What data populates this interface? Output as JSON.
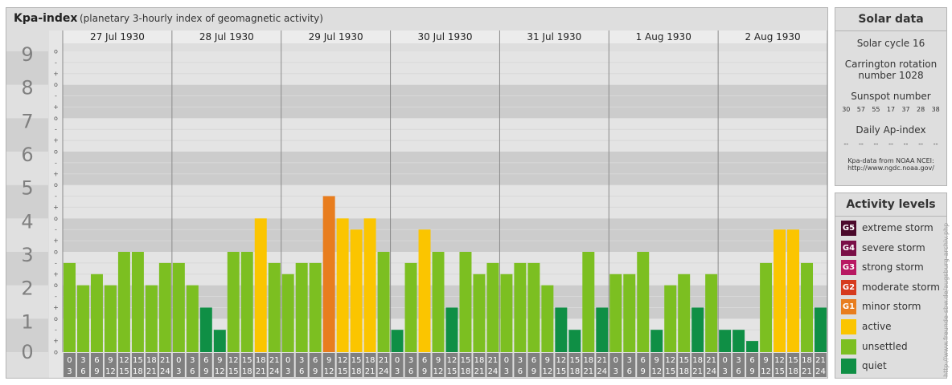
{
  "header": {
    "title": "Kpa-index",
    "subtitle": "(planetary 3-hourly index of geomagnetic activity)"
  },
  "solar": {
    "title": "Solar data",
    "cycle": "Solar cycle 16",
    "carrington_line1": "Carrington rotation",
    "carrington_line2": "number 1028",
    "sunspot_label": "Sunspot number",
    "sunspots": [
      "30",
      "57",
      "55",
      "17",
      "37",
      "28",
      "38"
    ],
    "ap_label": "Daily Ap-index",
    "ap_values": [
      "--",
      "--",
      "--",
      "--",
      "--",
      "--",
      "--"
    ],
    "source_line1": "Kpa-data from NOAA NCEI:",
    "source_line2": "http://www.ngdc.noaa.gov/"
  },
  "legend": {
    "title": "Activity levels",
    "items": [
      {
        "badge": "G5",
        "label": "extreme storm",
        "color": "#4b0a2b"
      },
      {
        "badge": "G4",
        "label": "severe storm",
        "color": "#7a0f47"
      },
      {
        "badge": "G3",
        "label": "strong storm",
        "color": "#b81862"
      },
      {
        "badge": "G2",
        "label": "moderate storm",
        "color": "#d63a1e"
      },
      {
        "badge": "G1",
        "label": "minor storm",
        "color": "#e87d1e"
      },
      {
        "badge": "",
        "label": "active",
        "color": "#fbc500"
      },
      {
        "badge": "",
        "label": "unsettled",
        "color": "#7cbf21"
      },
      {
        "badge": "",
        "label": "quiet",
        "color": "#0f8f45"
      }
    ]
  },
  "watermark": "http://www.freunde-sbw.de/augsburg-archiv.php",
  "chart_data": {
    "type": "bar",
    "ylim": [
      0,
      9
    ],
    "y_ticks": [
      "0",
      "1",
      "2",
      "3",
      "4",
      "5",
      "6",
      "7",
      "8",
      "9"
    ],
    "y_minor_marks": [
      "o",
      "+",
      "-"
    ],
    "days": [
      "27 Jul 1930",
      "28 Jul 1930",
      "29 Jul 1930",
      "30 Jul 1930",
      "31 Jul 1930",
      "1 Aug 1930",
      "2 Aug 1930"
    ],
    "interval_labels": [
      [
        "0",
        "3"
      ],
      [
        "3",
        "6"
      ],
      [
        "6",
        "9"
      ],
      [
        "9",
        "12"
      ],
      [
        "12",
        "15"
      ],
      [
        "15",
        "18"
      ],
      [
        "18",
        "21"
      ],
      [
        "21",
        "24"
      ]
    ],
    "values": [
      [
        2.667,
        2.0,
        2.333,
        2.0,
        3.0,
        3.0,
        2.0,
        2.667
      ],
      [
        2.667,
        2.0,
        1.333,
        0.667,
        3.0,
        3.0,
        4.0,
        2.667
      ],
      [
        2.333,
        2.667,
        2.667,
        4.667,
        4.0,
        3.667,
        4.0,
        3.0
      ],
      [
        0.667,
        2.667,
        3.667,
        3.0,
        1.333,
        3.0,
        2.333,
        2.667
      ],
      [
        2.333,
        2.667,
        2.667,
        2.0,
        1.333,
        0.667,
        3.0,
        1.333
      ],
      [
        2.333,
        2.333,
        3.0,
        0.667,
        2.0,
        2.333,
        1.333,
        2.333
      ],
      [
        0.667,
        0.667,
        0.333,
        2.667,
        3.667,
        3.667,
        2.667,
        1.333
      ]
    ],
    "colors": {
      "quiet": "#0f8f45",
      "unsettled": "#7cbf21",
      "active": "#fbc500",
      "minor_storm": "#e87d1e"
    }
  }
}
